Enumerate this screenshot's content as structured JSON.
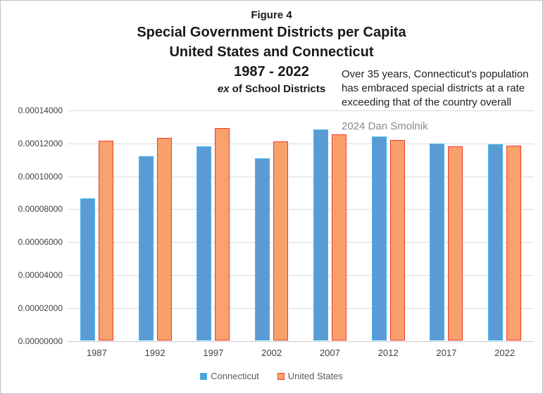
{
  "figure": {
    "label": "Figure 4",
    "title_line1": "Special Government Districts per Capita",
    "title_line2": "United States and Connecticut",
    "title_line3": "1987 - 2022",
    "subtitle_italic": "ex",
    "subtitle_rest": " of School Districts"
  },
  "annotation": {
    "lines": [
      "Over 35 years, Connecticut's population",
      "has embraced special districts at a rate",
      "exceeding that of the country overall"
    ]
  },
  "watermark": "2024 Dan Smolnik",
  "chart_data": {
    "type": "bar",
    "categories": [
      "1987",
      "1992",
      "1997",
      "2002",
      "2007",
      "2012",
      "2017",
      "2022"
    ],
    "series": [
      {
        "name": "Connecticut",
        "values": [
          8.65e-05,
          0.0001122,
          0.0001184,
          0.000111,
          0.0001284,
          0.000124,
          0.0001197,
          0.0001194
        ],
        "fill": "#5B9BD5",
        "border": "#3FB9E9"
      },
      {
        "name": "United States",
        "values": [
          0.0001215,
          0.0001233,
          0.0001293,
          0.0001212,
          0.0001256,
          0.0001221,
          0.0001182,
          0.0001186
        ],
        "fill": "#F8A16C",
        "border": "#EE3A2D"
      }
    ],
    "title": "Special Government Districts per Capita, United States and Connecticut, 1987 - 2022, ex of School Districts",
    "xlabel": "",
    "ylabel": "",
    "ylim": [
      0,
      0.00014
    ],
    "grid": true,
    "legend_position": "bottom",
    "ytick_labels_top_to_bottom": [
      "0.00014000",
      "0.00012000",
      "0.00010000",
      "0.00008000",
      "0.00006000",
      "0.00004000",
      "0.00002000",
      "0.00000000"
    ],
    "colors": {
      "gridline": "#DCDCDC",
      "axis_line": "#C9C9C9",
      "tick_text": "#404040",
      "legend_text": "#595959",
      "watermark_text": "#8A8A8A"
    }
  }
}
